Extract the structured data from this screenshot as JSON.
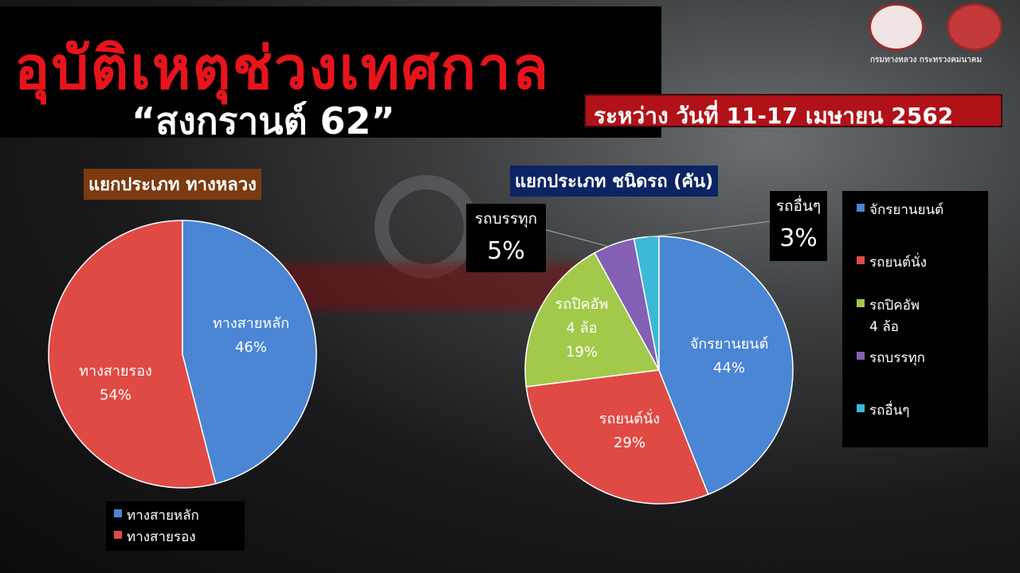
{
  "title": "อุบัติเหตุช่วงเทศกาล",
  "subtitle": "“สงกรานต์ 62”",
  "date_range": "ระหว่าง วันที่ 11-17 เมษายน 2562",
  "logo_caption": "กรมทางหลวง กระทรวงคมนาคม",
  "chart_data": [
    {
      "type": "pie",
      "title": "แยกประเภท ทางหลวง",
      "categories": [
        "ทางสายหลัก",
        "ทางสายรอง"
      ],
      "values": [
        46,
        54
      ],
      "colors": [
        "#4a86d4",
        "#e04a44"
      ],
      "legend_placement": "bottom"
    },
    {
      "type": "pie",
      "title": "แยกประเภท ชนิดรถ (คัน)",
      "categories": [
        "จักรยานยนต์",
        "รถยนต์นั่ง",
        "รถปิคอัพ 4 ล้อ",
        "รถบรรทุก",
        "รถอื่นๆ"
      ],
      "values": [
        44,
        29,
        19,
        5,
        3
      ],
      "colors": [
        "#4a86d4",
        "#e04a44",
        "#a3c94a",
        "#8460b4",
        "#3ab9d8"
      ],
      "legend_placement": "right"
    }
  ],
  "labels": {
    "left": [
      {
        "name": "ทางสายหลัก",
        "pct": "46%"
      },
      {
        "name": "ทางสายรอง",
        "pct": "54%"
      }
    ],
    "right": [
      {
        "name": "จักรยานยนต์",
        "pct": "44%"
      },
      {
        "name": "รถยนต์นั่ง",
        "pct": "29%"
      },
      {
        "name": "รถปิคอัพ",
        "name2": "4 ล้อ",
        "pct": "19%"
      },
      {
        "name": "รถบรรทุก",
        "pct": "5%"
      },
      {
        "name": "รถอื่นๆ",
        "pct": "3%"
      }
    ]
  },
  "legend_right": [
    {
      "line1": "จักรยานยนต์"
    },
    {
      "line1": "รถยนต์นั่ง"
    },
    {
      "line1": "รถปิคอัพ",
      "line2": "4 ล้อ"
    },
    {
      "line1": "รถบรรทุก"
    },
    {
      "line1": "รถอื่นๆ"
    }
  ]
}
